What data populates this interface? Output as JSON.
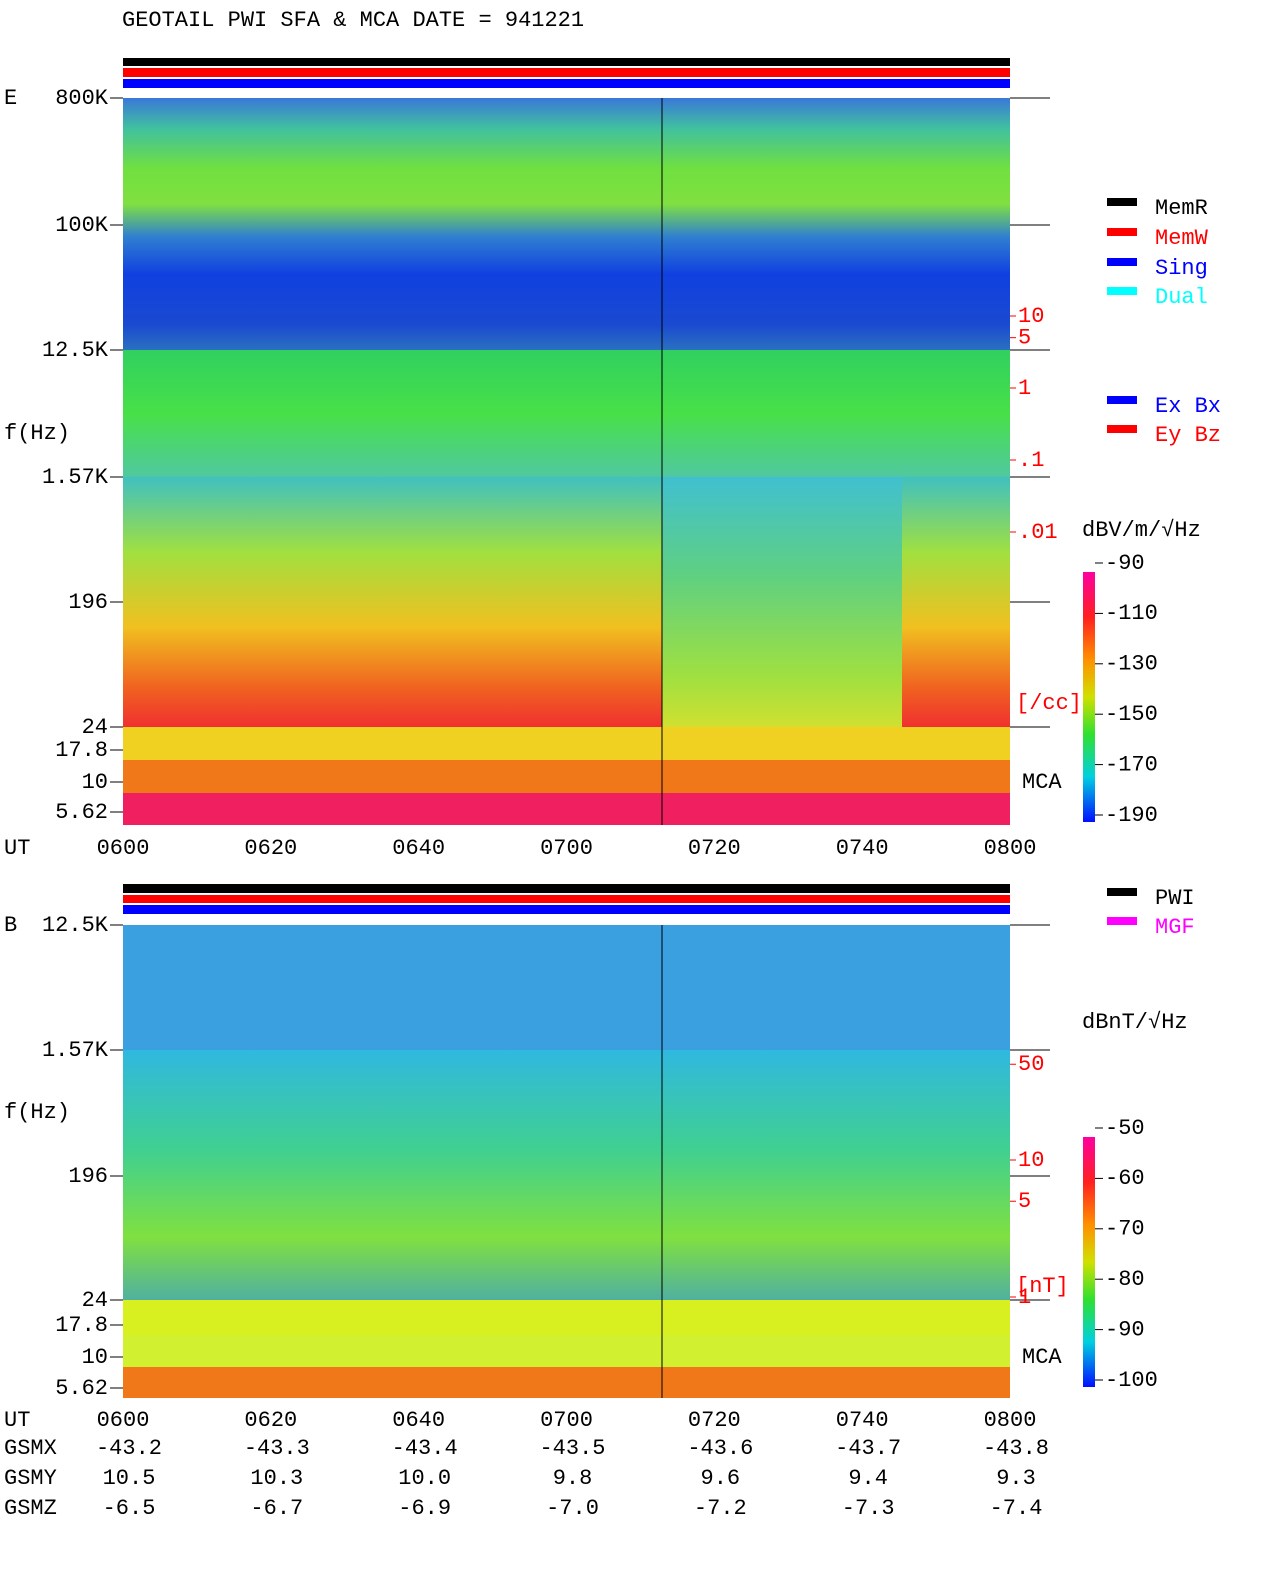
{
  "chart_data": [
    {
      "type": "spectrogram",
      "title": "GEOTAIL  PWI SFA & MCA   DATE = 941221",
      "panel": "E",
      "y_label": "f(Hz)",
      "x_label": "UT",
      "mca_label": "MCA",
      "xticks": [
        "0600",
        "0620",
        "0640",
        "0700",
        "0720",
        "0740",
        "0800"
      ],
      "yticks": [
        {
          "value": 800000,
          "label": "800K"
        },
        {
          "value": 100000,
          "label": "100K"
        },
        {
          "value": 12500,
          "label": "12.5K"
        },
        {
          "value": 1570,
          "label": "1.57K"
        },
        196,
        24,
        17.8,
        10,
        5.62
      ],
      "colorbar": {
        "label": "dBV/m/√Hz",
        "lim": [
          -190,
          -90
        ],
        "ticks": [
          -90,
          -110,
          -130,
          -150,
          -170,
          -190
        ]
      },
      "density_axis": {
        "label": "[/cc]",
        "log": true,
        "color": "#ff0000",
        "ticks": [
          10,
          5,
          1,
          {
            "value": 0.1,
            "label": ".1"
          },
          {
            "value": 0.01,
            "label": ".01"
          }
        ]
      },
      "legend": [
        {
          "name": "MemR",
          "color": "#000000"
        },
        {
          "name": "MemW",
          "color": "#ff0000"
        },
        {
          "name": "Sing",
          "color": "#0000ff"
        },
        {
          "name": "Dual",
          "color": "#00ffff"
        }
      ],
      "legend2": [
        {
          "name": "Ex Bx",
          "color": "#0000ff"
        },
        {
          "name": "Ey Bz",
          "color": "#ff0000"
        }
      ]
    },
    {
      "type": "spectrogram",
      "panel": "B",
      "y_label": "f(Hz)",
      "x_label": "UT",
      "mca_label": "MCA",
      "xticks": [
        "0600",
        "0620",
        "0640",
        "0700",
        "0720",
        "0740",
        "0800"
      ],
      "yticks": [
        {
          "value": 12500,
          "label": "12.5K"
        },
        {
          "value": 1570,
          "label": "1.57K"
        },
        196,
        24,
        17.8,
        10,
        5.62
      ],
      "colorbar": {
        "label": "dBnT/√Hz",
        "lim": [
          -100,
          -50
        ],
        "ticks": [
          -50,
          -60,
          -70,
          -80,
          -90,
          -100
        ]
      },
      "density_axis": {
        "label": "[nT]",
        "log": true,
        "color": "#ff0000",
        "ticks": [
          50,
          10,
          5,
          1
        ]
      },
      "legend": [
        {
          "name": "PWI",
          "color": "#000000"
        },
        {
          "name": "MGF",
          "color": "#ff00ff"
        }
      ]
    }
  ],
  "orbit": {
    "rows": [
      {
        "name": "GSMX",
        "values": [
          -43.2,
          -43.3,
          -43.4,
          -43.5,
          -43.6,
          -43.7,
          -43.8
        ]
      },
      {
        "name": "GSMY",
        "values": [
          10.5,
          10.3,
          {
            "value": 10,
            "label": "10.0"
          },
          9.8,
          9.6,
          9.4,
          9.3
        ]
      },
      {
        "name": "GSMZ",
        "values": [
          -6.5,
          -6.7,
          -6.9,
          {
            "value": -7,
            "label": "-7.0"
          },
          -7.2,
          -7.3,
          -7.4
        ]
      }
    ]
  }
}
